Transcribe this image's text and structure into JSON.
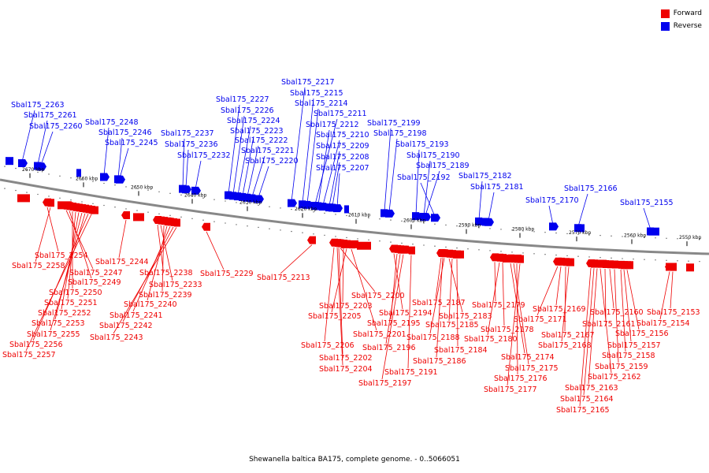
{
  "legend": {
    "forward_label": "Forward",
    "reverse_label": "Reverse",
    "forward_color": "#ee0000",
    "reverse_color": "#0000ee"
  },
  "caption": "Shewanella baltica BA175, complete genome. - 0..5066051",
  "scale_labels": [
    "2670 kbp",
    "2660 kbp",
    "2650 kbp",
    "2640 kbp",
    "2630 kbp",
    "2620 kbp",
    "2610 kbp",
    "2600 kbp",
    "2590 kbp",
    "2580 kbp",
    "2570 kbp",
    "2560 kbp",
    "2550 kbp"
  ],
  "reverse_genes": [
    "Sbal175_2263",
    "Sbal175_2261",
    "Sbal175_2260",
    "Sbal175_2248",
    "Sbal175_2246",
    "Sbal175_2245",
    "Sbal175_2237",
    "Sbal175_2236",
    "Sbal175_2232",
    "Sbal175_2227",
    "Sbal175_2226",
    "Sbal175_2224",
    "Sbal175_2223",
    "Sbal175_2222",
    "Sbal175_2221",
    "Sbal175_2220",
    "Sbal175_2217",
    "Sbal175_2215",
    "Sbal175_2214",
    "Sbal175_2211",
    "Sbal175_2212",
    "Sbal175_2210",
    "Sbal175_2209",
    "Sbal175_2208",
    "Sbal175_2207",
    "Sbal175_2199",
    "Sbal175_2198",
    "Sbal175_2193",
    "Sbal175_2190",
    "Sbal175_2189",
    "Sbal175_2192",
    "Sbal175_2182",
    "Sbal175_2181",
    "Sbal175_2170",
    "Sbal175_2166",
    "Sbal175_2155"
  ],
  "forward_genes": [
    "Sbal175_2254",
    "Sbal175_2258",
    "Sbal175_2247",
    "Sbal175_2249",
    "Sbal175_2250",
    "Sbal175_2251",
    "Sbal175_2252",
    "Sbal175_2253",
    "Sbal175_2255",
    "Sbal175_2256",
    "Sbal175_2257",
    "Sbal175_2244",
    "Sbal175_2238",
    "Sbal175_2233",
    "Sbal175_2239",
    "Sbal175_2240",
    "Sbal175_2241",
    "Sbal175_2242",
    "Sbal175_2243",
    "Sbal175_2229",
    "Sbal175_2213",
    "Sbal175_2200",
    "Sbal175_2203",
    "Sbal175_2205",
    "Sbal175_2201",
    "Sbal175_2206",
    "Sbal175_2202",
    "Sbal175_2204",
    "Sbal175_2194",
    "Sbal175_2195",
    "Sbal175_2196",
    "Sbal175_2197",
    "Sbal175_2191",
    "Sbal175_2187",
    "Sbal175_2183",
    "Sbal175_2185",
    "Sbal175_2188",
    "Sbal175_2184",
    "Sbal175_2186",
    "Sbal175_2179",
    "Sbal175_2178",
    "Sbal175_2180",
    "Sbal175_2174",
    "Sbal175_2175",
    "Sbal175_2176",
    "Sbal175_2177",
    "Sbal175_2169",
    "Sbal175_2171",
    "Sbal175_2167",
    "Sbal175_2168",
    "Sbal175_2160",
    "Sbal175_2161",
    "Sbal175_2162",
    "Sbal175_2163",
    "Sbal175_2164",
    "Sbal175_2165",
    "Sbal175_2153",
    "Sbal175_2154",
    "Sbal175_2156",
    "Sbal175_2157",
    "Sbal175_2158",
    "Sbal175_2159"
  ]
}
